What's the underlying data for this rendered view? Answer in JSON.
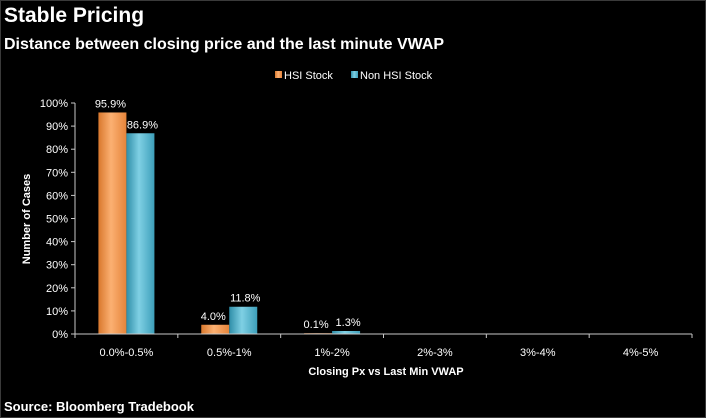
{
  "header": {
    "title": "Stable Pricing",
    "subtitle": "Distance between closing price and the last minute VWAP"
  },
  "footer": {
    "source": "Source: Bloomberg Tradebook"
  },
  "colors": {
    "background": "#000000",
    "hsi": "#f79646",
    "non_hsi": "#4bacc6",
    "axis": "#c8c8c8",
    "text": "#ffffff"
  },
  "chart_data": {
    "type": "bar",
    "title": "Distance between closing price and the last minute VWAP",
    "categories": [
      "0.0%-0.5%",
      "0.5%-1%",
      "1%-2%",
      "2%-3%",
      "3%-4%",
      "4%-5%"
    ],
    "series": [
      {
        "name": "HSI Stock",
        "values": [
          95.9,
          4.0,
          0.1,
          0,
          0,
          0
        ],
        "labels": [
          "95.9%",
          "4.0%",
          "0.1%",
          "",
          "",
          ""
        ]
      },
      {
        "name": "Non HSI Stock",
        "values": [
          86.9,
          11.8,
          1.3,
          0,
          0,
          0
        ],
        "labels": [
          "86.9%",
          "11.8%",
          "1.3%",
          "",
          "",
          ""
        ]
      }
    ],
    "xlabel": "Closing Px vs Last Min VWAP",
    "ylabel": "Number of Cases",
    "ylim": [
      0,
      100
    ],
    "yticks": [
      "0%",
      "10%",
      "20%",
      "30%",
      "40%",
      "50%",
      "60%",
      "70%",
      "80%",
      "90%",
      "100%"
    ],
    "grid": false,
    "legend": "top-center"
  }
}
